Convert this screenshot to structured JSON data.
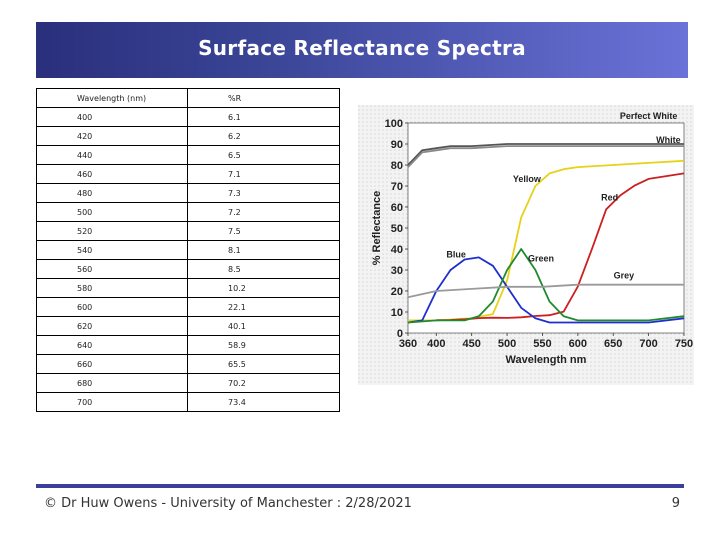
{
  "slide": {
    "title": "Surface Reflectance Spectra",
    "footer": "© Dr Huw Owens - University of Manchester : 2/28/2021",
    "page_number": "9"
  },
  "table": {
    "headers": [
      "Wavelength (nm)",
      "%R"
    ],
    "rows": [
      [
        "400",
        "6.1"
      ],
      [
        "420",
        "6.2"
      ],
      [
        "440",
        "6.5"
      ],
      [
        "460",
        "7.1"
      ],
      [
        "480",
        "7.3"
      ],
      [
        "500",
        "7.2"
      ],
      [
        "520",
        "7.5"
      ],
      [
        "540",
        "8.1"
      ],
      [
        "560",
        "8.5"
      ],
      [
        "580",
        "10.2"
      ],
      [
        "600",
        "22.1"
      ],
      [
        "620",
        "40.1"
      ],
      [
        "640",
        "58.9"
      ],
      [
        "660",
        "65.5"
      ],
      [
        "680",
        "70.2"
      ],
      [
        "700",
        "73.4"
      ]
    ]
  },
  "colors": {
    "title_bar": "#3a4596",
    "footer_line": "#3a3f99"
  },
  "chart_data": {
    "type": "line",
    "title": "",
    "xlabel": "Wavelength nm",
    "ylabel": "% Reflectance",
    "xlim": [
      360,
      750
    ],
    "ylim": [
      0,
      100
    ],
    "xticks": [
      360,
      400,
      450,
      500,
      550,
      600,
      650,
      700,
      750
    ],
    "yticks": [
      0,
      10,
      20,
      30,
      40,
      50,
      60,
      70,
      80,
      90,
      100
    ],
    "grid": false,
    "series": [
      {
        "name": "Perfect White",
        "color": "#555555",
        "x": [
          360,
          380,
          400,
          420,
          450,
          500,
          550,
          600,
          650,
          700,
          750
        ],
        "y": [
          80,
          87,
          88,
          89,
          89,
          90,
          90,
          90,
          90,
          90,
          90
        ]
      },
      {
        "name": "White",
        "color": "#8a8a8a",
        "x": [
          360,
          380,
          400,
          420,
          450,
          500,
          550,
          600,
          650,
          700,
          750
        ],
        "y": [
          79,
          86,
          87,
          88,
          88,
          89,
          89,
          89,
          89,
          89,
          89
        ]
      },
      {
        "name": "Yellow",
        "color": "#e6d21a",
        "x": [
          360,
          400,
          450,
          480,
          500,
          520,
          540,
          560,
          580,
          600,
          650,
          700,
          750
        ],
        "y": [
          6,
          6,
          7,
          9,
          25,
          55,
          70,
          76,
          78,
          79,
          80,
          81,
          82
        ]
      },
      {
        "name": "Red",
        "color": "#cc1f1f",
        "x": [
          400,
          420,
          440,
          460,
          480,
          500,
          520,
          540,
          560,
          580,
          600,
          620,
          640,
          660,
          680,
          700,
          750
        ],
        "y": [
          6.1,
          6.2,
          6.5,
          7.1,
          7.3,
          7.2,
          7.5,
          8.1,
          8.5,
          10.2,
          22.1,
          40.1,
          58.9,
          65.5,
          70.2,
          73.4,
          76
        ]
      },
      {
        "name": "Blue",
        "color": "#1f2fcf",
        "x": [
          360,
          380,
          400,
          420,
          440,
          460,
          480,
          500,
          520,
          540,
          560,
          600,
          650,
          700,
          750
        ],
        "y": [
          5,
          6,
          20,
          30,
          35,
          36,
          32,
          22,
          12,
          7,
          5,
          5,
          5,
          5,
          7
        ]
      },
      {
        "name": "Green",
        "color": "#1f8a2f",
        "x": [
          360,
          400,
          440,
          460,
          480,
          500,
          520,
          540,
          560,
          580,
          600,
          650,
          700,
          750
        ],
        "y": [
          5,
          6,
          6,
          8,
          15,
          30,
          40,
          30,
          15,
          8,
          6,
          6,
          6,
          8
        ]
      },
      {
        "name": "Grey",
        "color": "#9a9a9a",
        "x": [
          360,
          400,
          450,
          500,
          550,
          600,
          650,
          700,
          750
        ],
        "y": [
          17,
          20,
          21,
          22,
          22,
          23,
          23,
          23,
          23
        ]
      }
    ]
  }
}
